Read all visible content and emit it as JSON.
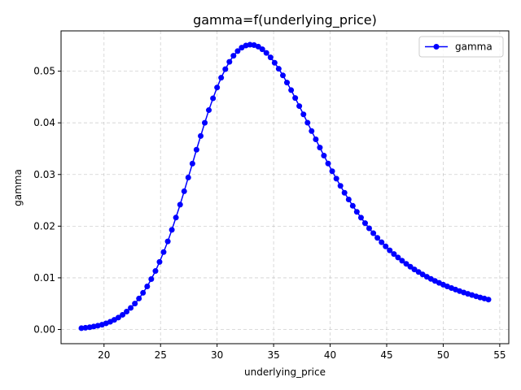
{
  "chart_data": {
    "type": "line",
    "title": "gamma=f(underlying_price)",
    "xlabel": "underlying_price",
    "ylabel": "gamma",
    "xlim": [
      16.2,
      55.8
    ],
    "ylim": [
      -0.00275,
      0.0578
    ],
    "xticks": [
      20,
      25,
      30,
      35,
      40,
      45,
      50,
      55
    ],
    "yticks": [
      0.0,
      0.01,
      0.02,
      0.03,
      0.04,
      0.05
    ],
    "ytick_labels": [
      "0.00",
      "0.01",
      "0.02",
      "0.03",
      "0.04",
      "0.05"
    ],
    "grid": true,
    "legend_position": "top-right",
    "series": [
      {
        "name": "gamma",
        "color": "#0000ff",
        "marker": "circle",
        "x": [
          18.0,
          18.36,
          18.73,
          19.09,
          19.45,
          19.82,
          20.18,
          20.55,
          20.91,
          21.27,
          21.64,
          22.0,
          22.36,
          22.73,
          23.09,
          23.45,
          23.82,
          24.18,
          24.55,
          24.91,
          25.27,
          25.64,
          26.0,
          26.36,
          26.73,
          27.09,
          27.45,
          27.82,
          28.18,
          28.55,
          28.91,
          29.27,
          29.64,
          30.0,
          30.36,
          30.73,
          31.09,
          31.45,
          31.82,
          32.18,
          32.55,
          32.91,
          33.27,
          33.64,
          34.0,
          34.36,
          34.73,
          35.09,
          35.45,
          35.82,
          36.18,
          36.55,
          36.91,
          37.27,
          37.64,
          38.0,
          38.36,
          38.73,
          39.09,
          39.45,
          39.82,
          40.18,
          40.55,
          40.91,
          41.27,
          41.64,
          42.0,
          42.36,
          42.73,
          43.09,
          43.45,
          43.82,
          44.18,
          44.55,
          44.91,
          45.27,
          45.64,
          46.0,
          46.36,
          46.73,
          47.09,
          47.45,
          47.82,
          48.18,
          48.55,
          48.91,
          49.27,
          49.64,
          50.0,
          50.36,
          50.73,
          51.09,
          51.45,
          51.82,
          52.18,
          52.55,
          52.91,
          53.27,
          53.64,
          54.0
        ],
        "y": [
          0.00025,
          0.00033,
          0.00043,
          0.00057,
          0.00073,
          0.00093,
          0.00119,
          0.00149,
          0.00187,
          0.00231,
          0.00284,
          0.00346,
          0.00418,
          0.00502,
          0.00599,
          0.00709,
          0.00834,
          0.00975,
          0.01132,
          0.01307,
          0.01498,
          0.01705,
          0.01929,
          0.02166,
          0.02416,
          0.02675,
          0.02941,
          0.03211,
          0.0348,
          0.03745,
          0.04001,
          0.04246,
          0.04474,
          0.04684,
          0.04873,
          0.05039,
          0.05181,
          0.05298,
          0.05389,
          0.05455,
          0.05496,
          0.05512,
          0.05505,
          0.05475,
          0.05424,
          0.05354,
          0.05266,
          0.05163,
          0.05046,
          0.04918,
          0.04779,
          0.04633,
          0.04481,
          0.04324,
          0.04164,
          0.04002,
          0.03841,
          0.0368,
          0.03521,
          0.03365,
          0.03212,
          0.03063,
          0.02919,
          0.0278,
          0.02646,
          0.02517,
          0.02394,
          0.02277,
          0.02165,
          0.02059,
          0.01958,
          0.01863,
          0.01773,
          0.01688,
          0.01608,
          0.01532,
          0.01461,
          0.01394,
          0.01331,
          0.01271,
          0.01215,
          0.01162,
          0.01112,
          0.01065,
          0.01021,
          0.00979,
          0.0094,
          0.00902,
          0.00867,
          0.00834,
          0.00802,
          0.00772,
          0.00743,
          0.00716,
          0.0069,
          0.00666,
          0.00642,
          0.0062,
          0.00599,
          0.00579
        ]
      }
    ]
  }
}
